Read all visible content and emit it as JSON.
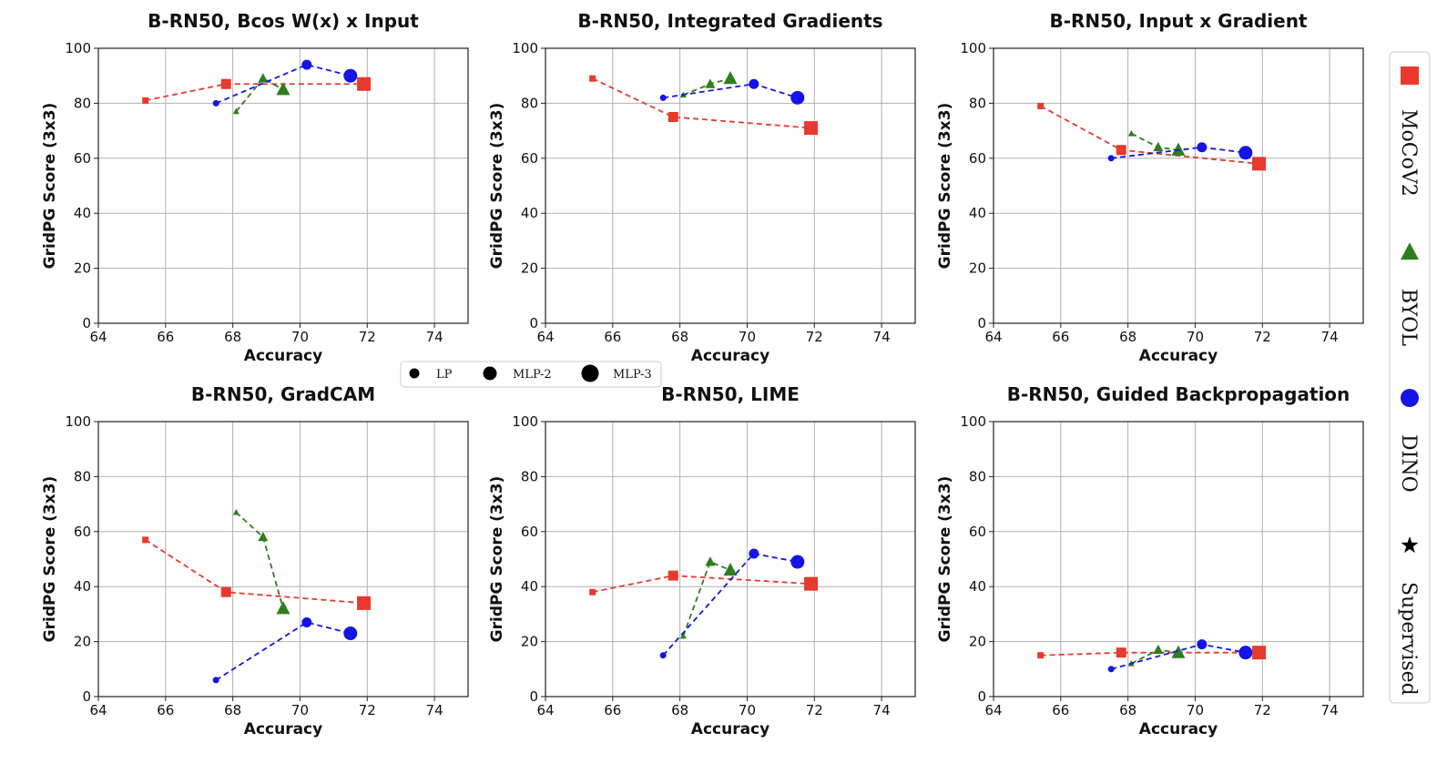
{
  "chart_data": [
    {
      "type": "line",
      "title": "B-RN50, Bcos W(x) x Input",
      "xlabel": "Accuracy",
      "ylabel": "GridPG Score (3x3)",
      "xlim": [
        64,
        75
      ],
      "ylim": [
        0,
        100
      ],
      "xticks": [
        "64",
        "66",
        "68",
        "70",
        "72",
        "74"
      ],
      "yticks": [
        "0",
        "20",
        "40",
        "60",
        "80",
        "100"
      ],
      "grid": true,
      "series": [
        {
          "name": "MoCoV2",
          "marker": "square",
          "color": "#e8392e",
          "points": [
            {
              "x": 65.4,
              "y": 81
            },
            {
              "x": 67.8,
              "y": 87
            },
            {
              "x": 71.9,
              "y": 87
            }
          ]
        },
        {
          "name": "BYOL",
          "marker": "triangle",
          "color": "#2e7d1e",
          "points": [
            {
              "x": 68.1,
              "y": 77
            },
            {
              "x": 68.9,
              "y": 89
            },
            {
              "x": 69.5,
              "y": 85
            }
          ]
        },
        {
          "name": "DINO",
          "marker": "circle",
          "color": "#1414e6",
          "points": [
            {
              "x": 67.5,
              "y": 80
            },
            {
              "x": 70.2,
              "y": 94
            },
            {
              "x": 71.5,
              "y": 90
            }
          ]
        }
      ]
    },
    {
      "type": "line",
      "title": "B-RN50, Integrated Gradients",
      "xlabel": "Accuracy",
      "ylabel": "GridPG Score (3x3)",
      "xlim": [
        64,
        75
      ],
      "ylim": [
        0,
        100
      ],
      "xticks": [
        "64",
        "66",
        "68",
        "70",
        "72",
        "74"
      ],
      "yticks": [
        "0",
        "20",
        "40",
        "60",
        "80",
        "100"
      ],
      "grid": true,
      "series": [
        {
          "name": "MoCoV2",
          "marker": "square",
          "color": "#e8392e",
          "points": [
            {
              "x": 65.4,
              "y": 89
            },
            {
              "x": 67.8,
              "y": 75
            },
            {
              "x": 71.9,
              "y": 71
            }
          ]
        },
        {
          "name": "BYOL",
          "marker": "triangle",
          "color": "#2e7d1e",
          "points": [
            {
              "x": 68.1,
              "y": 83
            },
            {
              "x": 68.9,
              "y": 87
            },
            {
              "x": 69.5,
              "y": 89
            }
          ]
        },
        {
          "name": "DINO",
          "marker": "circle",
          "color": "#1414e6",
          "points": [
            {
              "x": 67.5,
              "y": 82
            },
            {
              "x": 70.2,
              "y": 87
            },
            {
              "x": 71.5,
              "y": 82
            }
          ]
        }
      ]
    },
    {
      "type": "line",
      "title": "B-RN50, Input x Gradient",
      "xlabel": "Accuracy",
      "ylabel": "GridPG Score (3x3)",
      "xlim": [
        64,
        75
      ],
      "ylim": [
        0,
        100
      ],
      "xticks": [
        "64",
        "66",
        "68",
        "70",
        "72",
        "74"
      ],
      "yticks": [
        "0",
        "20",
        "40",
        "60",
        "80",
        "100"
      ],
      "grid": true,
      "series": [
        {
          "name": "MoCoV2",
          "marker": "square",
          "color": "#e8392e",
          "points": [
            {
              "x": 65.4,
              "y": 79
            },
            {
              "x": 67.8,
              "y": 63
            },
            {
              "x": 71.9,
              "y": 58
            }
          ]
        },
        {
          "name": "BYOL",
          "marker": "triangle",
          "color": "#2e7d1e",
          "points": [
            {
              "x": 68.1,
              "y": 69
            },
            {
              "x": 68.9,
              "y": 64
            },
            {
              "x": 69.5,
              "y": 63
            }
          ]
        },
        {
          "name": "DINO",
          "marker": "circle",
          "color": "#1414e6",
          "points": [
            {
              "x": 67.5,
              "y": 60
            },
            {
              "x": 70.2,
              "y": 64
            },
            {
              "x": 71.5,
              "y": 62
            }
          ]
        }
      ]
    },
    {
      "type": "line",
      "title": "B-RN50, GradCAM",
      "xlabel": "Accuracy",
      "ylabel": "GridPG Score (3x3)",
      "xlim": [
        64,
        75
      ],
      "ylim": [
        0,
        100
      ],
      "xticks": [
        "64",
        "66",
        "68",
        "70",
        "72",
        "74"
      ],
      "yticks": [
        "0",
        "20",
        "40",
        "60",
        "80",
        "100"
      ],
      "grid": true,
      "series": [
        {
          "name": "MoCoV2",
          "marker": "square",
          "color": "#e8392e",
          "points": [
            {
              "x": 65.4,
              "y": 57
            },
            {
              "x": 67.8,
              "y": 38
            },
            {
              "x": 71.9,
              "y": 34
            }
          ]
        },
        {
          "name": "BYOL",
          "marker": "triangle",
          "color": "#2e7d1e",
          "points": [
            {
              "x": 68.1,
              "y": 67
            },
            {
              "x": 68.9,
              "y": 58
            },
            {
              "x": 69.5,
              "y": 32
            }
          ]
        },
        {
          "name": "DINO",
          "marker": "circle",
          "color": "#1414e6",
          "points": [
            {
              "x": 67.5,
              "y": 6
            },
            {
              "x": 70.2,
              "y": 27
            },
            {
              "x": 71.5,
              "y": 23
            }
          ]
        }
      ]
    },
    {
      "type": "line",
      "title": "B-RN50, LIME",
      "xlabel": "Accuracy",
      "ylabel": "GridPG Score (3x3)",
      "xlim": [
        64,
        75
      ],
      "ylim": [
        0,
        100
      ],
      "xticks": [
        "64",
        "66",
        "68",
        "70",
        "72",
        "74"
      ],
      "yticks": [
        "0",
        "20",
        "40",
        "60",
        "80",
        "100"
      ],
      "grid": true,
      "series": [
        {
          "name": "MoCoV2",
          "marker": "square",
          "color": "#e8392e",
          "points": [
            {
              "x": 65.4,
              "y": 38
            },
            {
              "x": 67.8,
              "y": 44
            },
            {
              "x": 71.9,
              "y": 41
            }
          ]
        },
        {
          "name": "BYOL",
          "marker": "triangle",
          "color": "#2e7d1e",
          "points": [
            {
              "x": 68.1,
              "y": 22
            },
            {
              "x": 68.9,
              "y": 49
            },
            {
              "x": 69.5,
              "y": 46
            }
          ]
        },
        {
          "name": "DINO",
          "marker": "circle",
          "color": "#1414e6",
          "points": [
            {
              "x": 67.5,
              "y": 15
            },
            {
              "x": 70.2,
              "y": 52
            },
            {
              "x": 71.5,
              "y": 49
            }
          ]
        }
      ]
    },
    {
      "type": "line",
      "title": "B-RN50, Guided Backpropagation",
      "xlabel": "Accuracy",
      "ylabel": "GridPG Score (3x3)",
      "xlim": [
        64,
        75
      ],
      "ylim": [
        0,
        100
      ],
      "xticks": [
        "64",
        "66",
        "68",
        "70",
        "72",
        "74"
      ],
      "yticks": [
        "0",
        "20",
        "40",
        "60",
        "80",
        "100"
      ],
      "grid": true,
      "series": [
        {
          "name": "MoCoV2",
          "marker": "square",
          "color": "#e8392e",
          "points": [
            {
              "x": 65.4,
              "y": 15
            },
            {
              "x": 67.8,
              "y": 16
            },
            {
              "x": 71.9,
              "y": 16
            }
          ]
        },
        {
          "name": "BYOL",
          "marker": "triangle",
          "color": "#2e7d1e",
          "points": [
            {
              "x": 68.1,
              "y": 12
            },
            {
              "x": 68.9,
              "y": 17
            },
            {
              "x": 69.5,
              "y": 16
            }
          ]
        },
        {
          "name": "DINO",
          "marker": "circle",
          "color": "#1414e6",
          "points": [
            {
              "x": 67.5,
              "y": 10
            },
            {
              "x": 70.2,
              "y": 19
            },
            {
              "x": 71.5,
              "y": 16
            }
          ]
        }
      ]
    }
  ],
  "size_legend": {
    "placement": "center",
    "items": [
      {
        "label": "LP",
        "marker": "circle",
        "color": "#000000"
      },
      {
        "label": "MLP-2",
        "marker": "circle",
        "color": "#000000"
      },
      {
        "label": "MLP-3",
        "marker": "circle",
        "color": "#000000"
      }
    ]
  },
  "method_legend": {
    "placement": "right",
    "items": [
      {
        "label": "MoCoV2",
        "marker": "square",
        "color": "#e8392e"
      },
      {
        "label": "BYOL",
        "marker": "triangle",
        "color": "#2e7d1e"
      },
      {
        "label": "DINO",
        "marker": "circle",
        "color": "#1414e6"
      },
      {
        "label": "Supervised",
        "marker": "star",
        "color": "#000000"
      }
    ]
  }
}
